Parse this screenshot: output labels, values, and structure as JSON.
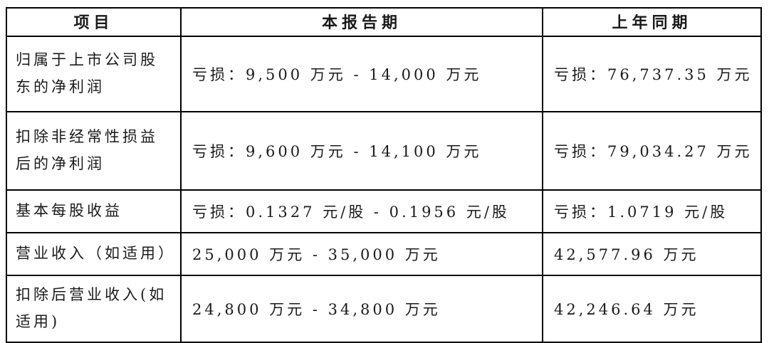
{
  "page": {
    "background_color": "#ffffff",
    "text_color": "#1a1a1a",
    "border_color": "#000000"
  },
  "table": {
    "headers": [
      "项目",
      "本报告期",
      "上年同期"
    ],
    "rows": [
      {
        "item": "归属于上市公司股\n东的净利润",
        "current_period": "亏损：9,500 万元 - 14,000 万元",
        "prior_year_period": "亏损：76,737.35 万元"
      },
      {
        "item": "扣除非经常性损益\n后的净利润",
        "current_period": "亏损：9,600 万元 - 14,100 万元",
        "prior_year_period": "亏损：79,034.27 万元"
      },
      {
        "item": "基本每股收益",
        "current_period": "亏损：0.1327 元/股 - 0.1956 元/股",
        "prior_year_period": "亏损：1.0719 元/股"
      },
      {
        "item": "营业收入（如适用）",
        "current_period": "25,000 万元 - 35,000 万元",
        "prior_year_period": "42,577.96 万元"
      },
      {
        "item": "扣除后营业收入(如\n适用)",
        "current_period": "24,800 万元 - 34,800 万元",
        "prior_year_period": "42,246.64 万元"
      }
    ]
  }
}
